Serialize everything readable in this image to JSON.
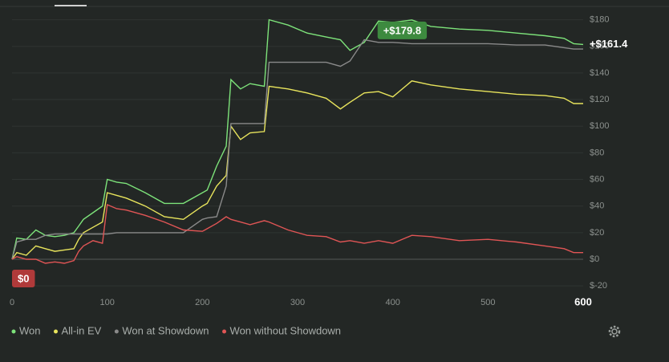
{
  "chart_data": {
    "type": "line",
    "x": [
      0,
      5,
      15,
      25,
      35,
      45,
      55,
      65,
      70,
      75,
      85,
      95,
      100,
      110,
      120,
      140,
      160,
      180,
      200,
      205,
      215,
      225,
      230,
      240,
      250,
      265,
      270,
      290,
      310,
      330,
      345,
      355,
      370,
      385,
      400,
      420,
      440,
      470,
      500,
      530,
      560,
      580,
      590,
      600
    ],
    "series": [
      {
        "name": "Won",
        "color": "#7de37a",
        "values": [
          0,
          16,
          15,
          22,
          18,
          17,
          18,
          20,
          25,
          30,
          35,
          40,
          60,
          58,
          57,
          50,
          42,
          42,
          50,
          52,
          70,
          85,
          135,
          128,
          132,
          130,
          180,
          176,
          170,
          167,
          165,
          157,
          163,
          179,
          178,
          179.8,
          175,
          173,
          172,
          170,
          168,
          166,
          162,
          161.4
        ]
      },
      {
        "name": "All-in EV",
        "color": "#e8e45c",
        "values": [
          0,
          5,
          3,
          10,
          8,
          6,
          7,
          8,
          15,
          20,
          24,
          28,
          50,
          48,
          46,
          40,
          32,
          30,
          40,
          42,
          55,
          63,
          100,
          90,
          95,
          96,
          130,
          128,
          125,
          121,
          113,
          118,
          125,
          126,
          122,
          134,
          131,
          128,
          126,
          124,
          123,
          121,
          117,
          117
        ]
      },
      {
        "name": "Won at Showdown",
        "color": "#8a8a8a",
        "values": [
          0,
          13,
          15,
          15,
          18,
          19,
          19,
          19,
          19,
          19,
          19,
          19,
          19,
          20,
          20,
          20,
          20,
          20,
          30,
          31,
          32,
          55,
          102,
          102,
          102,
          102,
          148,
          148,
          148,
          148,
          145,
          149,
          165,
          163,
          163,
          162,
          162,
          162,
          162,
          161,
          161,
          159,
          158,
          158
        ]
      },
      {
        "name": "Won without Showdown",
        "color": "#e05555",
        "values": [
          0,
          2,
          0,
          0,
          -3,
          -2,
          -3,
          -1,
          6,
          10,
          14,
          12,
          41,
          38,
          37,
          33,
          28,
          22,
          21,
          23,
          27,
          32,
          30,
          28,
          26,
          29,
          28,
          22,
          18,
          17,
          13,
          14,
          12,
          14,
          12,
          18,
          17,
          14,
          15,
          13,
          10,
          8,
          5,
          5
        ]
      }
    ],
    "xlim": [
      0,
      600
    ],
    "xticks": [
      0,
      100,
      200,
      300,
      400,
      500,
      600
    ],
    "ylim": [
      -22,
      190
    ],
    "yticks": [
      {
        "value": 180,
        "label": "$180"
      },
      {
        "value": 160,
        "label": "$160"
      },
      {
        "value": 140,
        "label": "$140"
      },
      {
        "value": 120,
        "label": "$120"
      },
      {
        "value": 100,
        "label": "$100"
      },
      {
        "value": 80,
        "label": "$80"
      },
      {
        "value": 60,
        "label": "$60"
      },
      {
        "value": 40,
        "label": "$40"
      },
      {
        "value": 20,
        "label": "$20"
      },
      {
        "value": 0,
        "label": "$0"
      },
      {
        "value": -20,
        "label": "$-20"
      }
    ],
    "grid": true,
    "annotations": [
      {
        "x": 420,
        "y": 179.8,
        "label": "+$179.8",
        "color": "#3d8a3f"
      },
      {
        "x": 600,
        "y": 161.4,
        "label": "+$161.4"
      },
      {
        "x": 0,
        "y": 0,
        "label": "$0",
        "color": "#b03a3a"
      }
    ]
  }
}
